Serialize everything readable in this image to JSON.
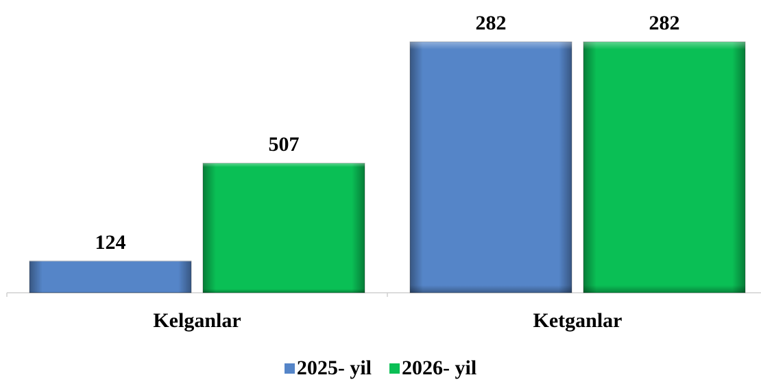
{
  "chart_data": {
    "type": "bar",
    "categories": [
      "Kelganlar",
      "Ketganlar"
    ],
    "series": [
      {
        "name": "2025- yil",
        "values": [
          124,
          282
        ],
        "color": "#5585C8"
      },
      {
        "name": "2026- yil",
        "values": [
          507,
          282
        ],
        "color": "#0ABF55"
      }
    ],
    "legend_position": "bottom",
    "grid": false,
    "data_labels": true
  }
}
